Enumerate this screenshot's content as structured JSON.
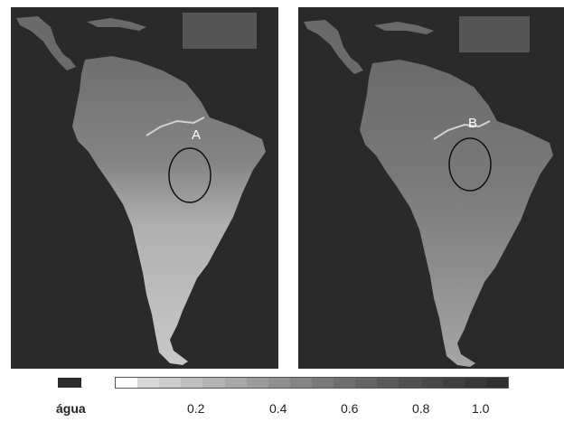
{
  "panels": [
    {
      "id": "left",
      "marker": "A"
    },
    {
      "id": "right",
      "marker": "B"
    }
  ],
  "legend": {
    "water_label": "água",
    "ticks": [
      "0.2",
      "0.4",
      "0.6",
      "0.8",
      "1.0"
    ],
    "water_color": "#2b2b2b",
    "scale_colors": [
      "#ffffff",
      "#d8d8d8",
      "#cccccc",
      "#c0c0c0",
      "#b4b4b4",
      "#a8a8a8",
      "#9c9c9c",
      "#909090",
      "#848484",
      "#7a7a7a",
      "#6e6e6e",
      "#646464",
      "#5a5a5a",
      "#505050",
      "#484848",
      "#404040",
      "#383838",
      "#303030"
    ]
  },
  "colors": {
    "ocean": "#2a2a2a",
    "land_north": "#7a7a7a",
    "land_south": "#bdbdbd"
  }
}
